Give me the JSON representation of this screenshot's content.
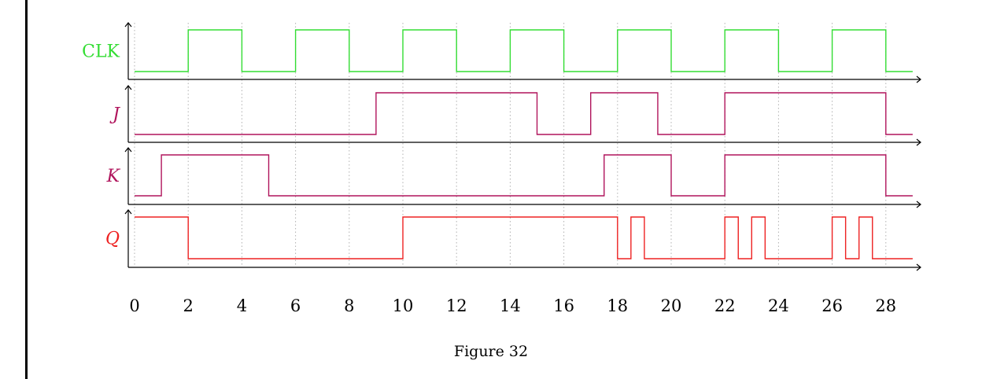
{
  "caption": "Figure 32",
  "colors": {
    "clk": "#33dd33",
    "jk": "#b0145c",
    "q": "#ee2222",
    "axis": "#000000",
    "grid": "#b0b0b0"
  },
  "x_ticks": [
    0,
    2,
    4,
    6,
    8,
    10,
    12,
    14,
    16,
    18,
    20,
    22,
    24,
    26,
    28
  ],
  "x_range": [
    0,
    29
  ],
  "chart_data": {
    "type": "line",
    "title": "",
    "xlabel": "",
    "ylabel": "",
    "grid": true,
    "series": [
      {
        "name": "CLK",
        "italic": false,
        "color_key": "clk",
        "transitions": [
          [
            0,
            0
          ],
          [
            2,
            1
          ],
          [
            4,
            0
          ],
          [
            6,
            1
          ],
          [
            8,
            0
          ],
          [
            10,
            1
          ],
          [
            12,
            0
          ],
          [
            14,
            1
          ],
          [
            16,
            0
          ],
          [
            18,
            1
          ],
          [
            20,
            0
          ],
          [
            22,
            1
          ],
          [
            24,
            0
          ],
          [
            26,
            1
          ],
          [
            28,
            0
          ]
        ]
      },
      {
        "name": "J",
        "italic": true,
        "color_key": "jk",
        "transitions": [
          [
            0,
            0
          ],
          [
            9,
            1
          ],
          [
            15,
            0
          ],
          [
            17,
            1
          ],
          [
            19.5,
            0
          ],
          [
            22,
            1
          ],
          [
            28,
            0
          ]
        ]
      },
      {
        "name": "K",
        "italic": true,
        "color_key": "jk",
        "transitions": [
          [
            0,
            0
          ],
          [
            1,
            1
          ],
          [
            5,
            0
          ],
          [
            17.5,
            1
          ],
          [
            20,
            0
          ],
          [
            22,
            1
          ],
          [
            28,
            0
          ]
        ]
      },
      {
        "name": "Q",
        "italic": true,
        "color_key": "q",
        "transitions": [
          [
            0,
            1
          ],
          [
            2,
            0
          ],
          [
            10,
            1
          ],
          [
            18,
            0
          ],
          [
            18.5,
            1
          ],
          [
            19,
            0
          ],
          [
            22,
            1
          ],
          [
            22.5,
            0
          ],
          [
            23,
            1
          ],
          [
            23.5,
            0
          ],
          [
            26,
            1
          ],
          [
            26.5,
            0
          ],
          [
            27,
            1
          ],
          [
            27.5,
            0
          ]
        ]
      }
    ]
  }
}
